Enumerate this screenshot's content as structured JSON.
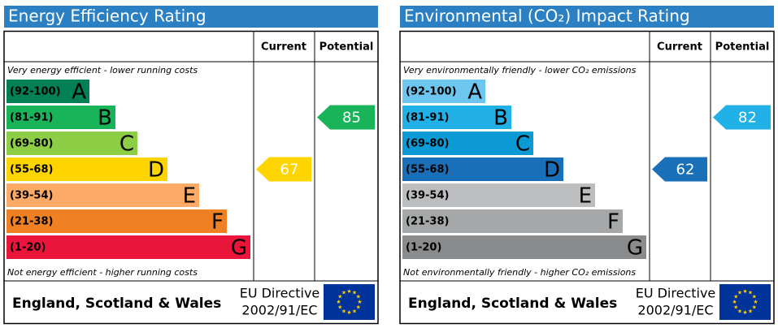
{
  "chart_data": [
    {
      "type": "epc",
      "title": "Energy Efficiency Rating",
      "columns": [
        "Current",
        "Potential"
      ],
      "top_note": "Very energy efficient - lower running costs",
      "bottom_note": "Not energy efficient - higher running costs",
      "bands": [
        {
          "range": "(92-100)",
          "letter": "A",
          "color": "#008054"
        },
        {
          "range": "(81-91)",
          "letter": "B",
          "color": "#19b459"
        },
        {
          "range": "(69-80)",
          "letter": "C",
          "color": "#8dce46"
        },
        {
          "range": "(55-68)",
          "letter": "D",
          "color": "#ffd500"
        },
        {
          "range": "(39-54)",
          "letter": "E",
          "color": "#fcaa65"
        },
        {
          "range": "(21-38)",
          "letter": "F",
          "color": "#ef8023"
        },
        {
          "range": "(1-20)",
          "letter": "G",
          "color": "#e9153b"
        }
      ],
      "current": 67,
      "potential": 85,
      "region": "England, Scotland & Wales",
      "directive": [
        "EU Directive",
        "2002/91/EC"
      ]
    },
    {
      "type": "epc",
      "title": "Environmental (CO₂) Impact Rating",
      "columns": [
        "Current",
        "Potential"
      ],
      "top_note": "Very environmentally friendly - lower CO₂ emissions",
      "bottom_note": "Not environmentally friendly - higher CO₂ emissions",
      "bands": [
        {
          "range": "(92-100)",
          "letter": "A",
          "color": "#6dc6f0"
        },
        {
          "range": "(81-91)",
          "letter": "B",
          "color": "#22b1e7"
        },
        {
          "range": "(69-80)",
          "letter": "C",
          "color": "#0c9ad5"
        },
        {
          "range": "(55-68)",
          "letter": "D",
          "color": "#1a6fb9"
        },
        {
          "range": "(39-54)",
          "letter": "E",
          "color": "#bbbdbf"
        },
        {
          "range": "(21-38)",
          "letter": "F",
          "color": "#a5a7a9"
        },
        {
          "range": "(1-20)",
          "letter": "G",
          "color": "#8a8b8d"
        }
      ],
      "current": 62,
      "potential": 82,
      "region": "England, Scotland & Wales",
      "directive": [
        "EU Directive",
        "2002/91/EC"
      ]
    }
  ]
}
